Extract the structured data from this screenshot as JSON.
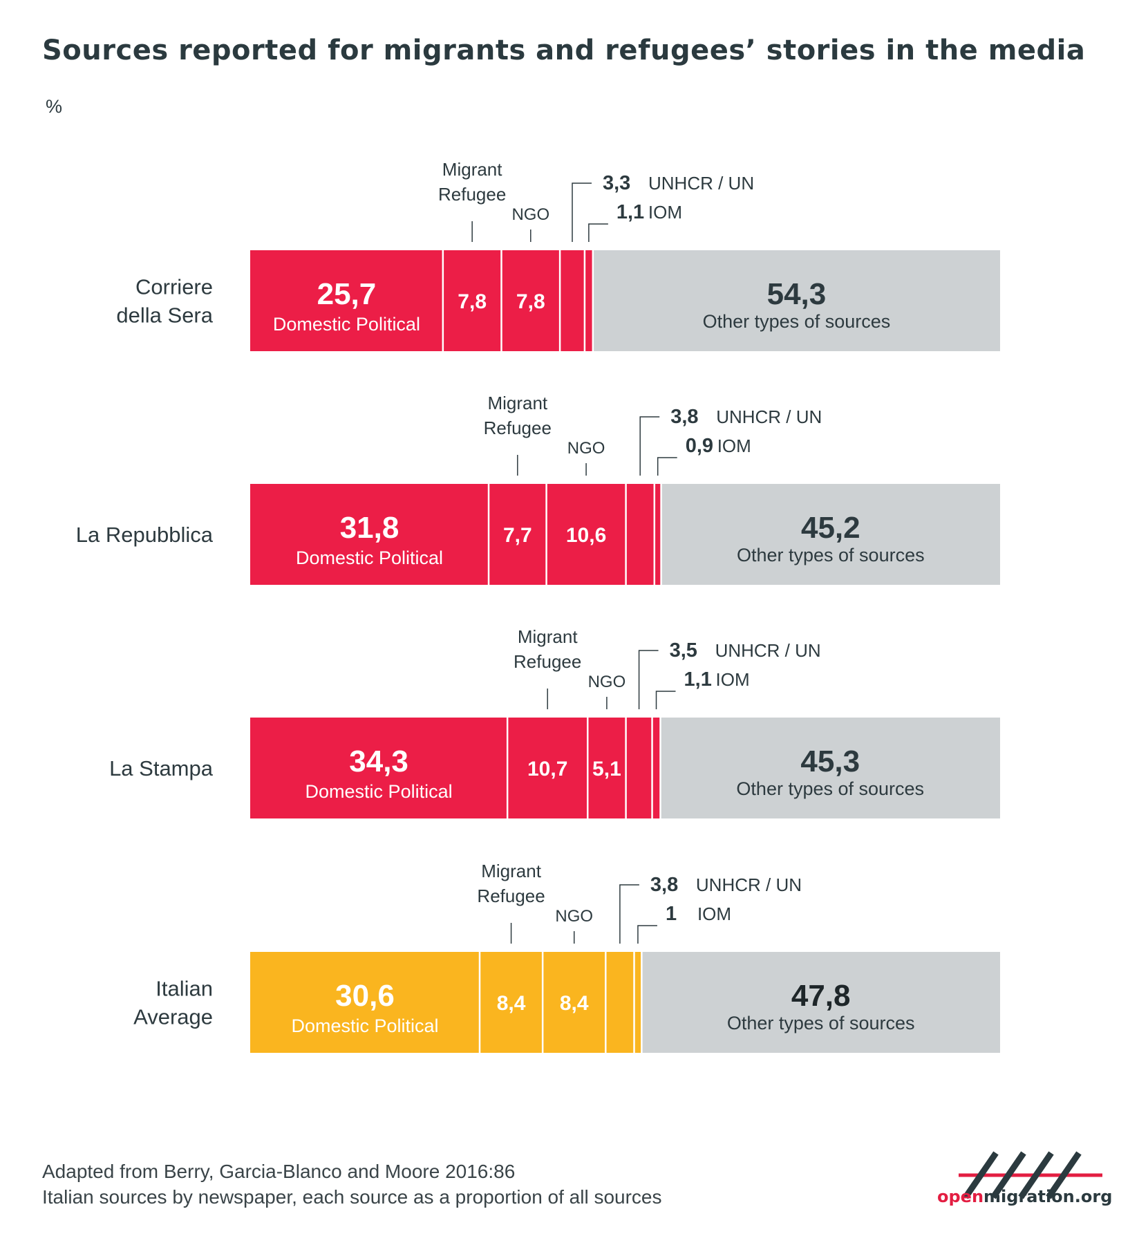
{
  "chart_data": {
    "type": "bar",
    "orientation": "horizontal",
    "stacked": true,
    "title": "Sources reported for migrants and refugees’ stories in the media",
    "unit": "%",
    "xlim": [
      0,
      100
    ],
    "grid": false,
    "segment_labels": {
      "domestic": "Domestic Political",
      "migrant": "Migrant Refugee",
      "migrant_line1": "Migrant",
      "migrant_line2": "Refugee",
      "ngo": "NGO",
      "unhcr": "UNHCR / UN",
      "iom": "IOM",
      "other": "Other types of sources"
    },
    "rows": [
      {
        "label": "Corriere della Sera",
        "label_lines": [
          "Corriere",
          "della Sera"
        ],
        "color": "#ec1e47",
        "values": {
          "domestic": 25.7,
          "migrant": 7.8,
          "ngo": 7.8,
          "unhcr": 3.3,
          "iom": 1.1,
          "other": 54.3
        },
        "display": {
          "domestic": "25,7",
          "migrant": "7,8",
          "ngo": "7,8",
          "unhcr": "3,3",
          "iom": "1,1",
          "other": "54,3"
        }
      },
      {
        "label": "La Repubblica",
        "label_lines": [
          "La Repubblica"
        ],
        "color": "#ec1e47",
        "values": {
          "domestic": 31.8,
          "migrant": 7.7,
          "ngo": 10.6,
          "unhcr": 3.8,
          "iom": 0.9,
          "other": 45.2
        },
        "display": {
          "domestic": "31,8",
          "migrant": "7,7",
          "ngo": "10,6",
          "unhcr": "3,8",
          "iom": "0,9",
          "other": "45,2"
        }
      },
      {
        "label": "La Stampa",
        "label_lines": [
          "La Stampa"
        ],
        "color": "#ec1e47",
        "values": {
          "domestic": 34.3,
          "migrant": 10.7,
          "ngo": 5.1,
          "unhcr": 3.5,
          "iom": 1.1,
          "other": 45.3
        },
        "display": {
          "domestic": "34,3",
          "migrant": "10,7",
          "ngo": "5,1",
          "unhcr": "3,5",
          "iom": "1,1",
          "other": "45,3"
        }
      },
      {
        "label": "Italian Average",
        "label_lines": [
          "Italian",
          "Average"
        ],
        "color": "#fab51f",
        "values": {
          "domestic": 30.6,
          "migrant": 8.4,
          "ngo": 8.4,
          "unhcr": 3.8,
          "iom": 1,
          "other": 47.8
        },
        "display": {
          "domestic": "30,6",
          "migrant": "8,4",
          "ngo": "8,4",
          "unhcr": "3,8",
          "iom": "1",
          "other": "47,8"
        }
      }
    ],
    "other_color": "#cdd1d3"
  },
  "source_lines": [
    "Adapted from Berry, Garcia-Blanco and Moore 2016:86",
    "Italian sources by newspaper, each source as a proportion of all sources"
  ],
  "brand": {
    "name_open": "open",
    "name_rest": "migration.org",
    "mark_color": "#2b3a3f",
    "accent_color": "#e31e42"
  }
}
